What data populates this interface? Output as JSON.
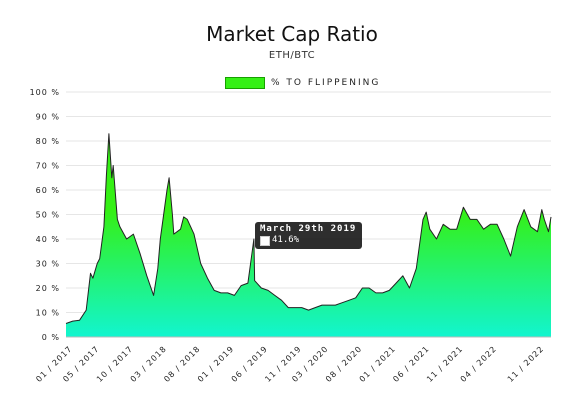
{
  "chart_data": {
    "type": "area",
    "title": "Market Cap Ratio",
    "subtitle": "ETH/BTC",
    "series": [
      {
        "name": "% TO FLIPPENING",
        "color": "#35f015",
        "fill_bottom_color": "#12f5cf",
        "line_color": "#222222"
      }
    ],
    "y_ticks": [
      "0 %",
      "10 %",
      "20 %",
      "30 %",
      "40 %",
      "50 %",
      "60 %",
      "70 %",
      "80 %",
      "90 %",
      "100 %"
    ],
    "ylim": [
      0,
      100
    ],
    "x_ticks": [
      "01 / 2017",
      "05 / 2017",
      "10 / 2017",
      "03 / 2018",
      "08 / 2018",
      "01 / 2019",
      "06 / 2019",
      "11 / 2019",
      "03 / 2020",
      "08 / 2020",
      "01 / 2021",
      "06 / 2021",
      "11 / 2021",
      "04 / 2022",
      "11 / 2022"
    ],
    "x_tick_dates": [
      "2017-01",
      "2017-05",
      "2017-10",
      "2018-03",
      "2018-08",
      "2019-01",
      "2019-06",
      "2019-11",
      "2020-03",
      "2020-08",
      "2021-01",
      "2021-06",
      "2021-11",
      "2022-04",
      "2022-11"
    ],
    "xlim": [
      "2016-12",
      "2022-12"
    ],
    "grid": true,
    "legend_position": "top",
    "points": [
      [
        "2016-12",
        5.5
      ],
      [
        "2017-01",
        6.5
      ],
      [
        "2017-02",
        6.8
      ],
      [
        "2017-03",
        11
      ],
      [
        "2017-03-20",
        26
      ],
      [
        "2017-04",
        24
      ],
      [
        "2017-04-20",
        30
      ],
      [
        "2017-05",
        32
      ],
      [
        "2017-05-20",
        45
      ],
      [
        "2017-06",
        66
      ],
      [
        "2017-06-12",
        83
      ],
      [
        "2017-06-25",
        65
      ],
      [
        "2017-07",
        70
      ],
      [
        "2017-07-20",
        48
      ],
      [
        "2017-08",
        45
      ],
      [
        "2017-09",
        40
      ],
      [
        "2017-10",
        42
      ],
      [
        "2017-11",
        34
      ],
      [
        "2017-12",
        25
      ],
      [
        "2018-01",
        17
      ],
      [
        "2018-01-20",
        28
      ],
      [
        "2018-02",
        40
      ],
      [
        "2018-03",
        60
      ],
      [
        "2018-03-10",
        65
      ],
      [
        "2018-03-25",
        50
      ],
      [
        "2018-04",
        42
      ],
      [
        "2018-05",
        44
      ],
      [
        "2018-05-15",
        49
      ],
      [
        "2018-06",
        48
      ],
      [
        "2018-07",
        42
      ],
      [
        "2018-08",
        30
      ],
      [
        "2018-09",
        24
      ],
      [
        "2018-10",
        19
      ],
      [
        "2018-11",
        18
      ],
      [
        "2018-12",
        18
      ],
      [
        "2019-01",
        17
      ],
      [
        "2019-02",
        21
      ],
      [
        "2019-03",
        22
      ],
      [
        "2019-03-28",
        40
      ],
      [
        "2019-03-31",
        24
      ],
      [
        "2019-04",
        23
      ],
      [
        "2019-05",
        20
      ],
      [
        "2019-06",
        19
      ],
      [
        "2019-07",
        17
      ],
      [
        "2019-08",
        15
      ],
      [
        "2019-09",
        12
      ],
      [
        "2019-10",
        12
      ],
      [
        "2019-11",
        12
      ],
      [
        "2019-12",
        11
      ],
      [
        "2020-01",
        12
      ],
      [
        "2020-02",
        13
      ],
      [
        "2020-03",
        13
      ],
      [
        "2020-04",
        13
      ],
      [
        "2020-05",
        14
      ],
      [
        "2020-06",
        15
      ],
      [
        "2020-07",
        16
      ],
      [
        "2020-08",
        20
      ],
      [
        "2020-09",
        20
      ],
      [
        "2020-10",
        18
      ],
      [
        "2020-11",
        18
      ],
      [
        "2020-12",
        19
      ],
      [
        "2021-01",
        22
      ],
      [
        "2021-02",
        25
      ],
      [
        "2021-03",
        20
      ],
      [
        "2021-04",
        28
      ],
      [
        "2021-05",
        48
      ],
      [
        "2021-05-15",
        51
      ],
      [
        "2021-06",
        44
      ],
      [
        "2021-07",
        40
      ],
      [
        "2021-08",
        46
      ],
      [
        "2021-09",
        44
      ],
      [
        "2021-10",
        44
      ],
      [
        "2021-11",
        53
      ],
      [
        "2021-12",
        48
      ],
      [
        "2022-01",
        48
      ],
      [
        "2022-02",
        44
      ],
      [
        "2022-03",
        46
      ],
      [
        "2022-04",
        46
      ],
      [
        "2022-05",
        40
      ],
      [
        "2022-06",
        33
      ],
      [
        "2022-07",
        45
      ],
      [
        "2022-08",
        52
      ],
      [
        "2022-09",
        45
      ],
      [
        "2022-10",
        43
      ],
      [
        "2022-10-20",
        52
      ],
      [
        "2022-11",
        48
      ],
      [
        "2022-11-20",
        43
      ],
      [
        "2022-12",
        49
      ]
    ],
    "tooltip": {
      "date": "March 29th 2019",
      "value": "41.6%"
    }
  }
}
